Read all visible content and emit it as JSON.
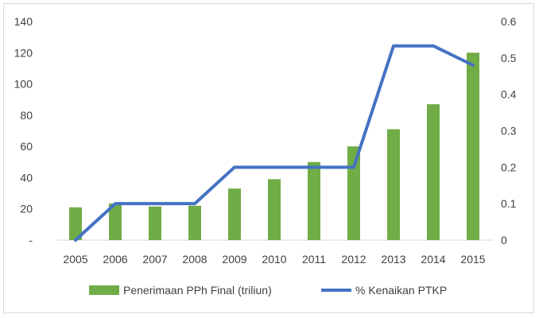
{
  "chart_data": {
    "type": "bar",
    "categories": [
      "2005",
      "2006",
      "2007",
      "2008",
      "2009",
      "2010",
      "2011",
      "2012",
      "2013",
      "2014",
      "2015"
    ],
    "series": [
      {
        "name": "Penerimaan PPh Final (triliun)",
        "kind": "bar",
        "axis": "left",
        "color": "#70ad47",
        "values": [
          21,
          23.5,
          21.5,
          22,
          33,
          39,
          50,
          60,
          71,
          87,
          120
        ]
      },
      {
        "name": "% Kenaikan PTKP",
        "kind": "line",
        "axis": "right",
        "color": "#4472c4",
        "values": [
          0,
          0.1,
          0.1,
          0.1,
          0.2,
          0.2,
          0.2,
          0.2,
          0.533,
          0.533,
          0.48
        ]
      }
    ],
    "y_left": {
      "ylim": [
        0,
        140
      ],
      "ticks": [
        "-",
        "20",
        "40",
        "60",
        "80",
        "100",
        "120",
        "140"
      ]
    },
    "y_right": {
      "ylim": [
        0,
        0.6
      ],
      "ticks": [
        "0",
        "0.1",
        "0.2",
        "0.3",
        "0.4",
        "0.5",
        "0.6"
      ]
    },
    "title": "",
    "xlabel": "",
    "ylabel": "",
    "grid": false,
    "legend": "bottom"
  }
}
